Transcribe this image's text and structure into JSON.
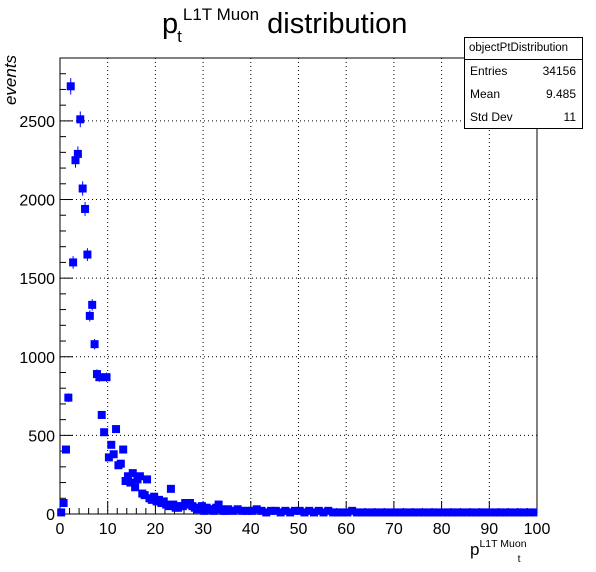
{
  "title": {
    "main": "p",
    "subscript": "t",
    "superscript": "L1T Muon",
    "suffix": "distribution"
  },
  "stats": {
    "name": "objectPtDistribution",
    "entries_label": "Entries",
    "entries_value": "34156",
    "mean_label": "Mean",
    "mean_value": "9.485",
    "stddev_label": "Std Dev",
    "stddev_value": "11"
  },
  "xaxis": {
    "title_main": "p",
    "title_sub": "t",
    "title_sup": "L1T Muon"
  },
  "yaxis": {
    "title": "events"
  },
  "colors": {
    "marker": "#0000ff",
    "grid": "#000000"
  },
  "chart_data": {
    "type": "scatter",
    "title": "p_t^{L1T Muon} distribution",
    "xlabel": "p_t^{L1T Muon}",
    "ylabel": "events",
    "xlim": [
      0,
      100
    ],
    "ylim": [
      0,
      2900
    ],
    "grid": true,
    "xticks": [
      0,
      10,
      20,
      30,
      40,
      50,
      60,
      70,
      80,
      90,
      100
    ],
    "yticks": [
      0,
      500,
      1000,
      1500,
      2000,
      2500
    ],
    "series": [
      {
        "x": [
          0.25,
          0.75,
          1.25,
          1.75,
          2.25,
          2.75,
          3.25,
          3.75,
          4.25,
          4.75,
          5.25,
          5.75,
          6.25,
          6.75,
          7.25,
          7.75,
          8.25,
          8.75,
          9.25,
          9.75,
          10.25,
          10.75,
          11.25,
          11.75,
          12.25,
          12.75,
          13.25,
          13.75,
          14.25,
          14.75,
          15.25,
          15.75,
          16.25,
          16.75,
          17.25,
          17.75,
          18.25,
          18.75,
          19.25,
          19.75,
          20.25,
          20.75,
          21.25,
          21.75,
          22.25,
          22.75,
          23.25,
          23.75,
          24.25,
          24.75,
          25.25,
          25.75,
          26.25,
          26.75,
          27.25,
          27.75,
          28.25,
          28.75,
          29.25,
          29.75,
          30.25,
          30.75,
          31.25,
          31.75,
          32.25,
          32.75,
          33.25,
          33.75,
          34.25,
          34.75,
          35.25,
          36.25,
          37.25,
          38.25,
          39.25,
          40.25,
          41.25,
          42.25,
          43.25,
          44.25,
          45.25,
          46.25,
          47.25,
          48.25,
          49.25,
          50.25,
          51.25,
          52.25,
          53.25,
          54.25,
          55.25,
          56.25,
          57.25,
          58.25,
          59.25,
          60.25,
          61.25,
          62.25,
          63.25,
          64.25,
          65.25,
          66.25,
          67.25,
          68.25,
          69.25,
          70.25,
          71.25,
          72.25,
          73.25,
          74.25,
          75.25,
          76.25,
          77.25,
          78.25,
          79.25,
          80.25,
          81.25,
          82.25,
          83.25,
          84.25,
          85.25,
          86.25,
          87.25,
          88.25,
          89.25,
          90.25,
          91.25,
          92.25,
          93.25,
          94.25,
          95.25,
          96.25,
          97.25,
          98.25,
          99.25
        ],
        "y": [
          10,
          70,
          410,
          740,
          2720,
          1600,
          2250,
          2290,
          2510,
          2070,
          1940,
          1650,
          1260,
          1330,
          1080,
          890,
          870,
          630,
          520,
          870,
          360,
          440,
          380,
          540,
          310,
          320,
          410,
          210,
          240,
          200,
          260,
          170,
          220,
          240,
          130,
          120,
          220,
          100,
          90,
          110,
          80,
          90,
          70,
          80,
          60,
          50,
          160,
          60,
          40,
          40,
          50,
          50,
          70,
          60,
          70,
          50,
          40,
          30,
          40,
          50,
          20,
          40,
          30,
          30,
          20,
          40,
          60,
          30,
          20,
          20,
          30,
          20,
          30,
          20,
          20,
          20,
          30,
          20,
          10,
          20,
          20,
          10,
          20,
          10,
          20,
          20,
          10,
          20,
          10,
          20,
          10,
          20,
          10,
          10,
          10,
          10,
          20,
          10,
          10,
          10,
          10,
          10,
          10,
          10,
          10,
          10,
          10,
          10,
          10,
          10,
          10,
          10,
          10,
          10,
          10,
          10,
          10,
          10,
          10,
          10,
          10,
          10,
          10,
          10,
          10,
          10,
          10,
          10,
          10,
          10,
          10,
          10,
          10,
          10,
          10
        ]
      }
    ]
  }
}
